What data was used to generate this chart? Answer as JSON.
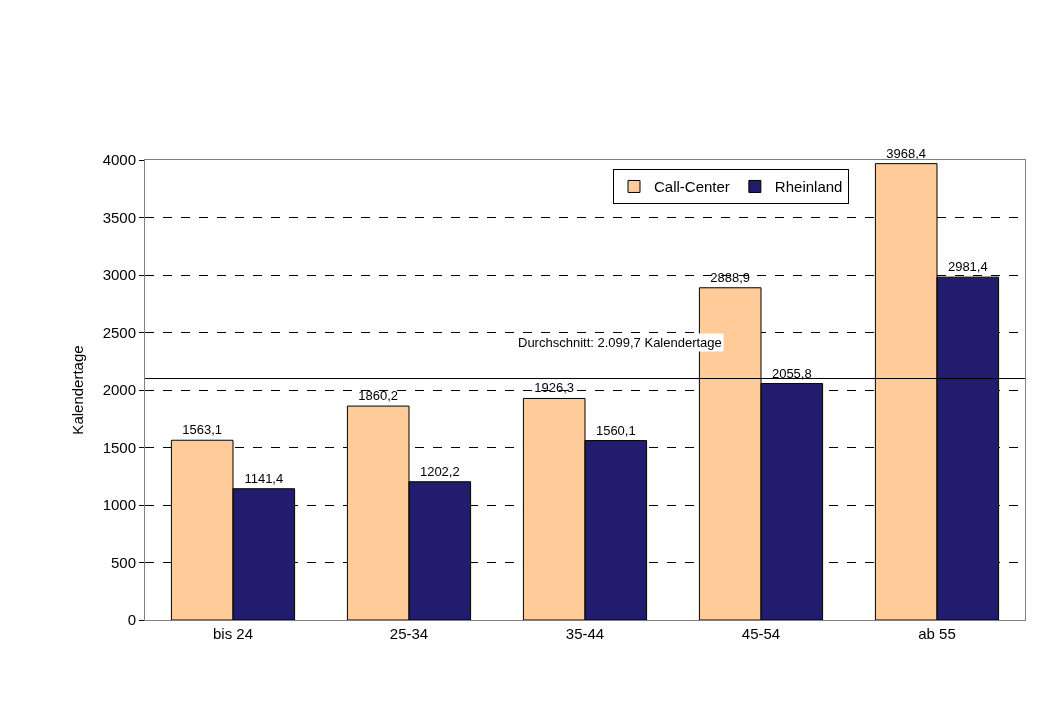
{
  "chart_data": {
    "type": "bar",
    "ylabel": "Kalendertage",
    "categories": [
      "bis 24",
      "25-34",
      "35-44",
      "45-54",
      "ab 55"
    ],
    "series": [
      {
        "name": "Call-Center",
        "color": "#ffcc99",
        "values": [
          1563.1,
          1860.2,
          1926.3,
          2888.9,
          3968.4
        ],
        "value_labels": [
          "1563,1",
          "1860,2",
          "1926,3",
          "2888,9",
          "3968,4"
        ]
      },
      {
        "name": "Rheinland",
        "color": "#211c6e",
        "values": [
          1141.4,
          1202.2,
          1560.1,
          2055.8,
          2981.4
        ],
        "value_labels": [
          "1141,4",
          "1202,2",
          "1560,1",
          "2055,8",
          "2981,4"
        ]
      }
    ],
    "ylim": [
      0,
      4000
    ],
    "yticks": [
      0,
      500,
      1000,
      1500,
      2000,
      2500,
      3000,
      3500,
      4000
    ],
    "ref_lines": [
      {
        "axis": "y",
        "value": 2099.7,
        "label": "Durchschnitt: 2.099,7 Kalendertage",
        "color": "#000000",
        "line_style": "solid"
      }
    ],
    "grid": "y",
    "legend": "top right"
  }
}
